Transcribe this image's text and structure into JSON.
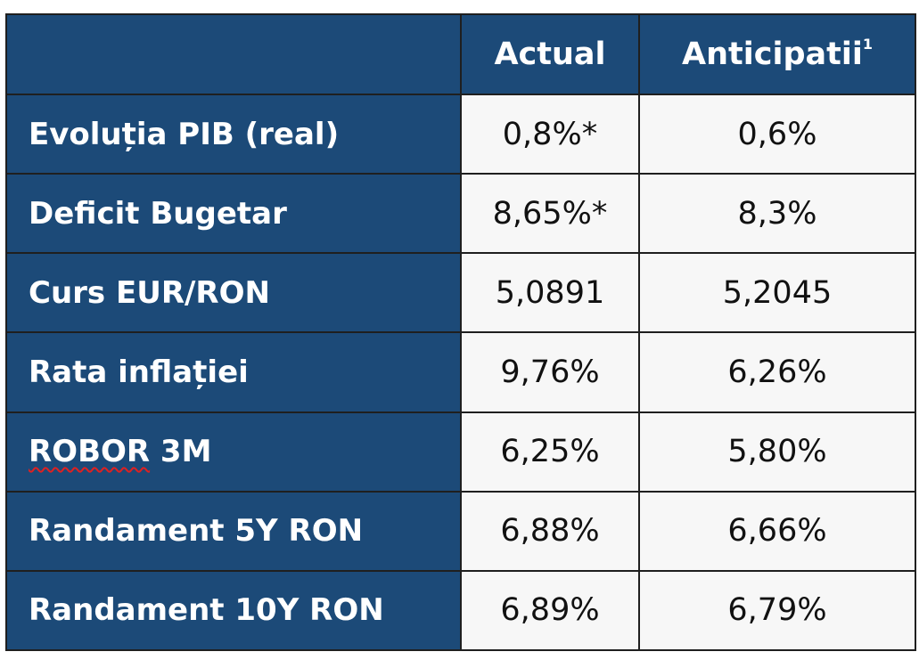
{
  "header": {
    "empty": "",
    "actual": "Actual",
    "anticipatii": "Anticipatii",
    "footnote_marker": "1"
  },
  "rows": [
    {
      "label": "Evoluția PIB (real)",
      "actual": "0,8%*",
      "anticipatii": "0,6%"
    },
    {
      "label": "Deficit Bugetar",
      "actual": "8,65%*",
      "anticipatii": "8,3%"
    },
    {
      "label": "Curs EUR/RON",
      "actual": "5,0891",
      "anticipatii": "5,2045"
    },
    {
      "label": "Rata inflației",
      "actual": "9,76%",
      "anticipatii": "6,26%"
    },
    {
      "label_a": "ROBOR",
      "label_b": " 3M",
      "actual": "6,25%",
      "anticipatii": "5,80%"
    },
    {
      "label": "Randament 5Y RON",
      "actual": "6,88%",
      "anticipatii": "6,66%"
    },
    {
      "label": "Randament 10Y RON",
      "actual": "6,89%",
      "anticipatii": "6,79%"
    }
  ],
  "colors": {
    "header_bg": "#1c4a78",
    "cell_bg": "#f7f7f7",
    "border": "#1f1f1f",
    "spellcheck": "#e02020"
  }
}
